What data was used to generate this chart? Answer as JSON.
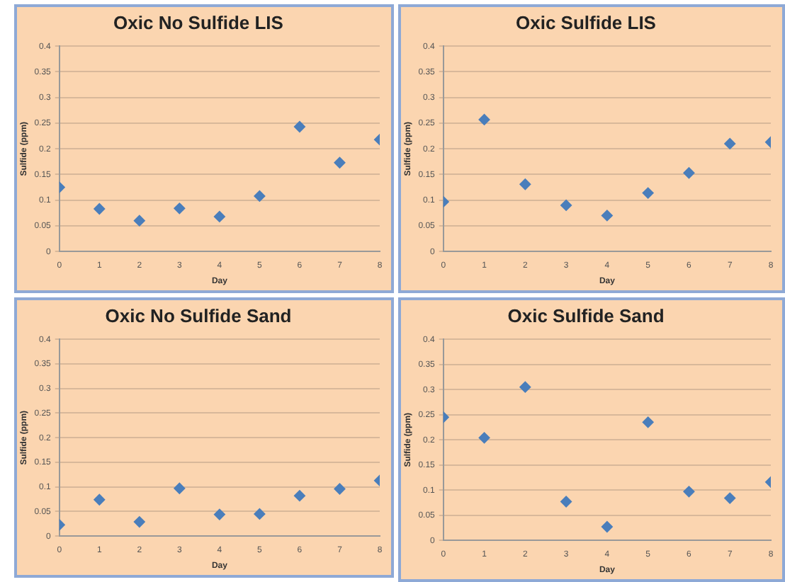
{
  "chart_data": [
    {
      "type": "scatter",
      "title": "Oxic No Sulfide LIS",
      "xlabel": "Day",
      "ylabel": "Sulfide (ppm)",
      "x": [
        0,
        1,
        2,
        3,
        4,
        5,
        6,
        7,
        8
      ],
      "series": [
        {
          "color": "#4a7ebb",
          "values": [
            0.125,
            0.083,
            0.06,
            0.084,
            0.068,
            0.108,
            0.243,
            0.173,
            0.218
          ]
        }
      ],
      "xlim": [
        0,
        8
      ],
      "xticks": [
        0,
        1,
        2,
        3,
        4,
        5,
        6,
        7,
        8
      ],
      "ylim": [
        0,
        0.4
      ],
      "yticks": [
        0,
        0.05,
        0.1,
        0.15,
        0.2,
        0.25,
        0.3,
        0.35,
        0.4
      ],
      "grid": "y",
      "marker": "diamond",
      "legend": false
    },
    {
      "type": "scatter",
      "title": "Oxic Sulfide LIS",
      "xlabel": "Day",
      "ylabel": "Sulfide (ppm)",
      "x": [
        0,
        1,
        2,
        3,
        4,
        5,
        6,
        7,
        8
      ],
      "series": [
        {
          "color": "#4a7ebb",
          "values": [
            0.097,
            0.257,
            0.131,
            0.09,
            0.07,
            0.114,
            0.153,
            0.21,
            0.213
          ]
        }
      ],
      "xlim": [
        0,
        8
      ],
      "xticks": [
        0,
        1,
        2,
        3,
        4,
        5,
        6,
        7,
        8
      ],
      "ylim": [
        0,
        0.4
      ],
      "yticks": [
        0,
        0.05,
        0.1,
        0.15,
        0.2,
        0.25,
        0.3,
        0.35,
        0.4
      ],
      "grid": "y",
      "marker": "diamond",
      "legend": false
    },
    {
      "type": "scatter",
      "title": "Oxic No Sulfide Sand",
      "xlabel": "Day",
      "ylabel": "Sulfide (ppm)",
      "x": [
        0,
        1,
        2,
        3,
        4,
        5,
        6,
        7,
        8
      ],
      "series": [
        {
          "color": "#4a7ebb",
          "values": [
            0.023,
            0.074,
            0.029,
            0.097,
            0.044,
            0.045,
            0.082,
            0.096,
            0.113
          ]
        }
      ],
      "xlim": [
        0,
        8
      ],
      "xticks": [
        0,
        1,
        2,
        3,
        4,
        5,
        6,
        7,
        8
      ],
      "ylim": [
        0,
        0.4
      ],
      "yticks": [
        0,
        0.05,
        0.1,
        0.15,
        0.2,
        0.25,
        0.3,
        0.35,
        0.4
      ],
      "grid": "y",
      "marker": "diamond",
      "legend": false
    },
    {
      "type": "scatter",
      "title": "Oxic Sulfide Sand",
      "xlabel": "Day",
      "ylabel": "Sulfide (ppm)",
      "x": [
        0,
        1,
        2,
        3,
        4,
        5,
        6,
        7,
        8
      ],
      "series": [
        {
          "color": "#4a7ebb",
          "values": [
            0.245,
            0.204,
            0.305,
            0.077,
            0.027,
            0.235,
            0.097,
            0.084,
            0.116
          ]
        }
      ],
      "xlim": [
        0,
        8
      ],
      "xticks": [
        0,
        1,
        2,
        3,
        4,
        5,
        6,
        7,
        8
      ],
      "ylim": [
        0,
        0.4
      ],
      "yticks": [
        0,
        0.05,
        0.1,
        0.15,
        0.2,
        0.25,
        0.3,
        0.35,
        0.4
      ],
      "grid": "y",
      "marker": "diamond",
      "legend": false
    }
  ]
}
